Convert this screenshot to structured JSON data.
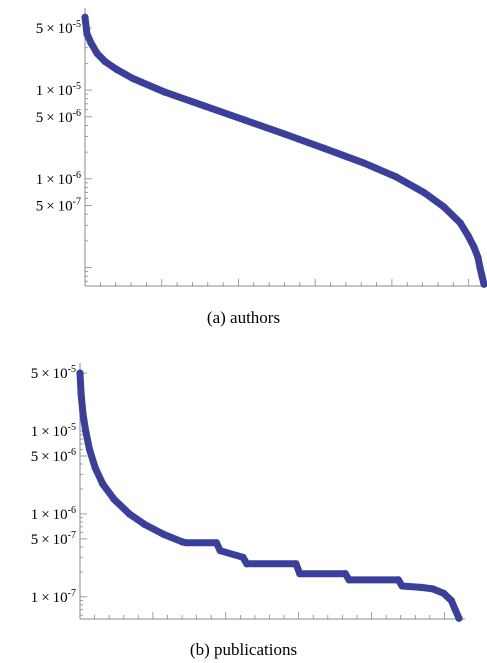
{
  "chart_data": [
    {
      "type": "scatter",
      "caption": "(a)  authors",
      "yscale": "log",
      "grid": false,
      "ytick_labels": [
        {
          "mant": "5",
          "exp": "-5",
          "value": 5e-05
        },
        {
          "mant": "1",
          "exp": "-5",
          "value": 1e-05
        },
        {
          "mant": "5",
          "exp": "-6",
          "value": 5e-06
        },
        {
          "mant": "1",
          "exp": "-6",
          "value": 1e-06
        },
        {
          "mant": "5",
          "exp": "-7",
          "value": 5e-07
        }
      ],
      "ylim": [
        6.2e-08,
        7.2e-05
      ],
      "color": "#3b3f9c",
      "x": [
        0,
        0.005,
        0.015,
        0.03,
        0.05,
        0.08,
        0.12,
        0.2,
        0.3,
        0.4,
        0.5,
        0.6,
        0.7,
        0.78,
        0.85,
        0.9,
        0.94,
        0.96,
        0.975,
        0.985,
        0.99,
        0.995,
        1.0
      ],
      "y": [
        6.6e-05,
        4.3e-05,
        3.4e-05,
        2.6e-05,
        2.1e-05,
        1.7e-05,
        1.35e-05,
        9.5e-06,
        6.6e-06,
        4.6e-06,
        3.2e-06,
        2.2e-06,
        1.5e-06,
        1.05e-06,
        7e-07,
        4.8e-07,
        3.2e-07,
        2.3e-07,
        1.7e-07,
        1.3e-07,
        1e-07,
        8e-08,
        6.5e-08
      ]
    },
    {
      "type": "scatter",
      "caption": "(b)  publications",
      "yscale": "log",
      "grid": false,
      "ytick_labels": [
        {
          "mant": "5",
          "exp": "-5",
          "value": 5e-05
        },
        {
          "mant": "1",
          "exp": "-5",
          "value": 1e-05
        },
        {
          "mant": "5",
          "exp": "-6",
          "value": 5e-06
        },
        {
          "mant": "1",
          "exp": "-6",
          "value": 1e-06
        },
        {
          "mant": "5",
          "exp": "-7",
          "value": 5e-07
        },
        {
          "mant": "1",
          "exp": "-7",
          "value": 1e-07
        }
      ],
      "ylim": [
        5.4e-08,
        5.6e-05
      ],
      "color": "#3b3f9c",
      "x": [
        0,
        0.003,
        0.008,
        0.015,
        0.025,
        0.04,
        0.06,
        0.09,
        0.13,
        0.17,
        0.22,
        0.27,
        0.28,
        0.36,
        0.37,
        0.43,
        0.44,
        0.57,
        0.58,
        0.7,
        0.71,
        0.84,
        0.85,
        0.9,
        0.93,
        0.96,
        0.98,
        0.99,
        1.0
      ],
      "y": [
        5e-05,
        2.8e-05,
        1.6e-05,
        1e-05,
        6e-06,
        3.6e-06,
        2.3e-06,
        1.5e-06,
        1e-06,
        7.5e-07,
        5.7e-07,
        4.6e-07,
        4.5e-07,
        4.5e-07,
        3.6e-07,
        3e-07,
        2.5e-07,
        2.5e-07,
        1.9e-07,
        1.9e-07,
        1.6e-07,
        1.6e-07,
        1.35e-07,
        1.3e-07,
        1.25e-07,
        1.1e-07,
        9e-08,
        7e-08,
        5.5e-08
      ]
    }
  ]
}
